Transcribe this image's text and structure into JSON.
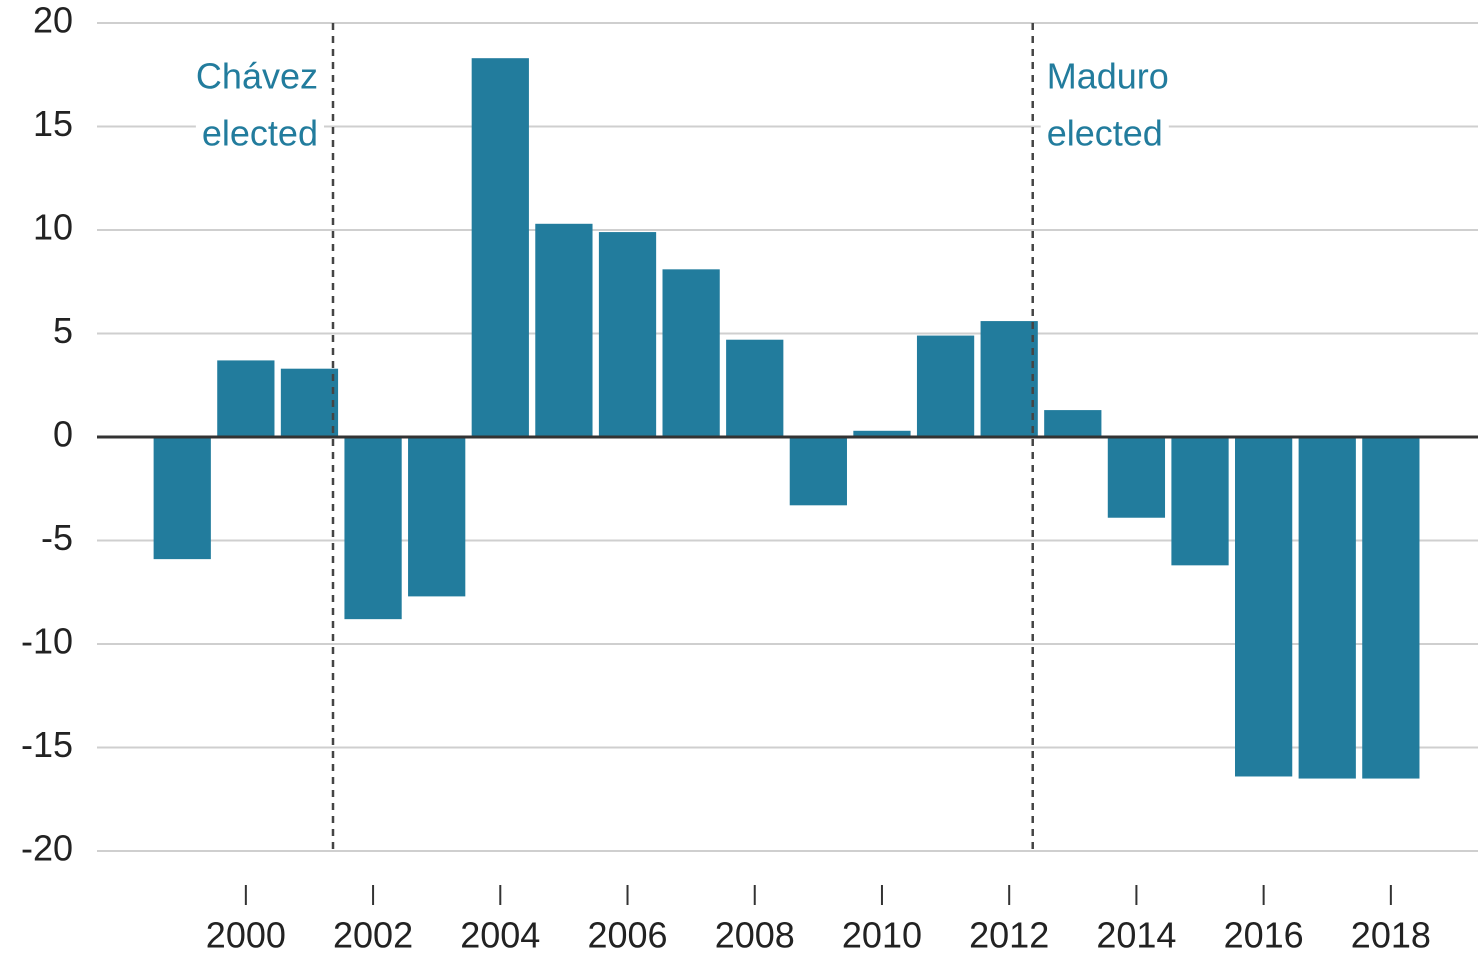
{
  "chart_data": {
    "type": "bar",
    "x": [
      1999,
      2000,
      2001,
      2002,
      2003,
      2004,
      2005,
      2006,
      2007,
      2008,
      2009,
      2010,
      2011,
      2012,
      2013,
      2014,
      2015,
      2016,
      2017,
      2018
    ],
    "values": [
      -5.9,
      3.7,
      3.3,
      -8.8,
      -7.7,
      18.3,
      10.3,
      9.9,
      8.1,
      4.7,
      -3.3,
      0.3,
      4.9,
      5.6,
      1.3,
      -3.9,
      -6.2,
      -16.4,
      -16.5,
      -16.5
    ],
    "color": "#227c9d",
    "xlim": [
      1997.66,
      2019.37
    ],
    "xticks": [
      2000,
      2002,
      2004,
      2006,
      2008,
      2010,
      2012,
      2014,
      2016,
      2018
    ],
    "ylim": [
      -20,
      20
    ],
    "yticks": [
      -20,
      -15,
      -10,
      -5,
      0,
      5,
      10,
      15,
      20
    ],
    "grid": true,
    "annotations": [
      {
        "x": 2001.37,
        "text": [
          "Chávez",
          "elected"
        ]
      },
      {
        "x": 2012.37,
        "text": [
          "Maduro",
          "elected"
        ]
      }
    ]
  }
}
